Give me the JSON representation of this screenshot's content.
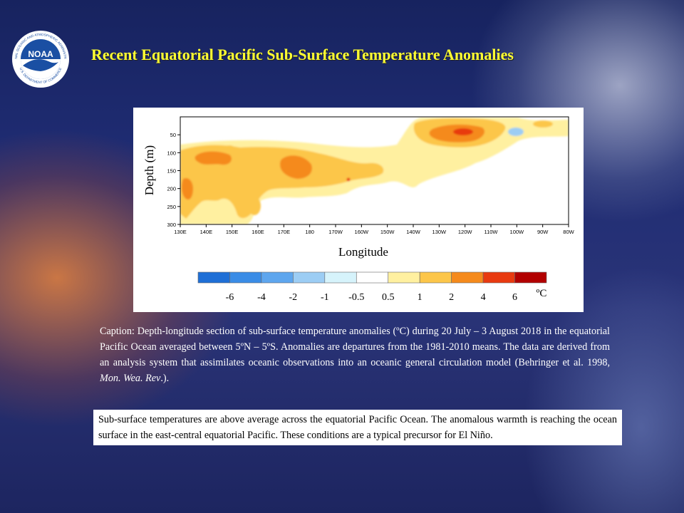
{
  "title": "Recent Equatorial Pacific Sub-Surface Temperature Anomalies",
  "logo": {
    "text": "NOAA",
    "ring_top": "NATIONAL OCEANIC AND ATMOSPHERIC ADMINISTRATION",
    "ring_bottom": "U.S. DEPARTMENT OF COMMERCE"
  },
  "chart_data": {
    "type": "heatmap",
    "xlabel": "Longitude",
    "ylabel": "Depth (m)",
    "x_ticks": [
      "130E",
      "140E",
      "150E",
      "160E",
      "170E",
      "180",
      "170W",
      "160W",
      "150W",
      "140W",
      "130W",
      "120W",
      "110W",
      "100W",
      "90W",
      "80W"
    ],
    "y_ticks": [
      "50",
      "100",
      "150",
      "200",
      "250",
      "300"
    ],
    "y_range_m": [
      300,
      0
    ],
    "colorbar": {
      "unit": "ºC",
      "tick_labels": [
        "-6",
        "-4",
        "-2",
        "-1",
        "-0.5",
        "0.5",
        "1",
        "2",
        "4",
        "6"
      ],
      "colors": [
        "#1f6fd6",
        "#3a8ce6",
        "#5ea6ee",
        "#9ccdf4",
        "#d6f3fb",
        "#ffffff",
        "#fff0a0",
        "#fcc64a",
        "#f58a1c",
        "#e83a10",
        "#b20000"
      ]
    },
    "regions": [
      {
        "level": "0.5-1",
        "color": "#fff0a0",
        "desc": "broad weak warm anomaly across most of the section"
      },
      {
        "level": "1-2",
        "color": "#fcc64a",
        "desc": "130E-170W at 80-270 m"
      },
      {
        "level": "1-2",
        "color": "#fcc64a",
        "desc": "135W-105W near 20-110 m"
      },
      {
        "level": "2-4",
        "color": "#f58a1c",
        "desc": "133E-140E near 200 m"
      },
      {
        "level": "2-4",
        "color": "#f58a1c",
        "desc": "139E-152E near 110-130 m"
      },
      {
        "level": "2-4",
        "color": "#f58a1c",
        "desc": "171E-181 near 140 m"
      },
      {
        "level": "2-4",
        "color": "#f58a1c",
        "desc": "130W-111W near 50 m"
      },
      {
        "level": "4-6",
        "color": "#e83a10",
        "desc": "124W-118W near 45 m"
      },
      {
        "level": "-1 to -0.5",
        "color": "#9ccdf4",
        "desc": "110W-100W near 50 m (cool anomaly)"
      }
    ]
  },
  "caption": {
    "part1": "Caption: Depth-longitude section of sub-surface temperature anomalies (ºC) during 20 July – 3 August 2018 in the equatorial Pacific Ocean averaged between 5ºN – 5ºS. Anomalies are departures from the 1981-2010 means. The data are derived from an analysis system that assimilates oceanic observations into an oceanic general circulation model (Behringer et al. 1998, ",
    "journal": "Mon. Wea. Rev",
    "part2": ".)."
  },
  "note": "Sub-surface temperatures are above average across the equatorial Pacific Ocean. The anomalous warmth is reaching the ocean surface in the east-central equatorial Pacific. These conditions  are a typical precursor for El Niño."
}
